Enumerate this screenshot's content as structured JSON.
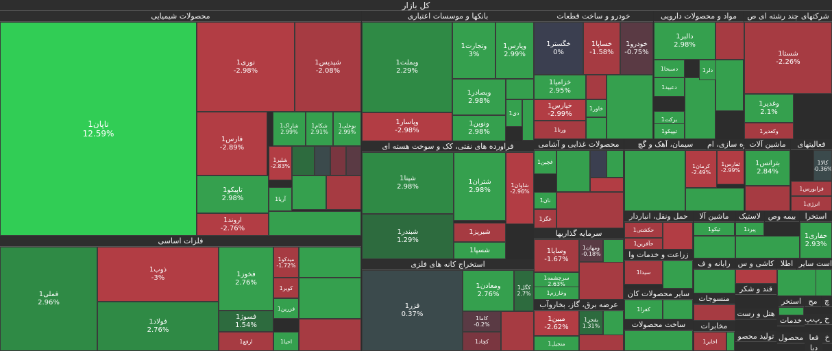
{
  "root_title": "کل بازار",
  "colors": {
    "deep_green": "#2f8a45",
    "green": "#35a04e",
    "bright_green": "#31cd55",
    "dark_green": "#2d6b3e",
    "deep_red": "#b23d44",
    "red": "#a63b42",
    "dark_red": "#7a3640",
    "slate": "#3b4a4c",
    "navy": "#3b3f50",
    "maroon": "#5a3a44"
  },
  "sectors": [
    {
      "id": "chem",
      "title": "محصولات شیمیایی",
      "tiles": [
        {
          "name": "تاپان1",
          "pct": "12.59%",
          "c": "bright_green"
        },
        {
          "name": "نوری1",
          "pct": "-2.98%",
          "c": "deep_red"
        },
        {
          "name": "شپدیس1",
          "pct": "-2.08%",
          "c": "red"
        },
        {
          "name": "فارس1",
          "pct": "-2.89%",
          "c": "deep_red"
        },
        {
          "name": "شاراک1",
          "pct": "2.99%",
          "c": "green"
        },
        {
          "name": "شکام1",
          "pct": "2.91%",
          "c": "green"
        },
        {
          "name": "بوعلی1",
          "pct": "2.99%",
          "c": "green"
        },
        {
          "name": "تاپیکو1",
          "pct": "2.98%",
          "c": "green"
        },
        {
          "name": "شلیر1",
          "pct": "-2.83%",
          "c": "deep_red"
        },
        {
          "name": "آریا1",
          "pct": "",
          "c": "green"
        },
        {
          "name": "اروند1",
          "pct": "-2.76%",
          "c": "deep_red"
        }
      ]
    },
    {
      "id": "banks",
      "title": "بانکها و موسسات اعتباری",
      "tiles": [
        {
          "name": "وبملت1",
          "pct": "2.29%",
          "c": "deep_green"
        },
        {
          "name": "وتجارت1",
          "pct": "3%",
          "c": "green"
        },
        {
          "name": "وپارس1",
          "pct": "2.99%",
          "c": "green"
        },
        {
          "name": "وبصادر1",
          "pct": "2.98%",
          "c": "green"
        },
        {
          "name": "دی1",
          "pct": "",
          "c": "green"
        },
        {
          "name": "ونوین1",
          "pct": "2.98%",
          "c": "green"
        },
        {
          "name": "وپاسار1",
          "pct": "-2.98%",
          "c": "deep_red"
        }
      ]
    },
    {
      "id": "oil",
      "title": "فراورده های نفتی، کک و سوخت هسته ای",
      "tiles": [
        {
          "name": "شپنا1",
          "pct": "2.98%",
          "c": "deep_green"
        },
        {
          "name": "شتران1",
          "pct": "2.98%",
          "c": "green"
        },
        {
          "name": "شاوان1",
          "pct": "-2.96%",
          "c": "deep_red"
        },
        {
          "name": "شبندر1",
          "pct": "1.29%",
          "c": "dark_green"
        },
        {
          "name": "شبریز1",
          "pct": "",
          "c": "red"
        },
        {
          "name": "شسپا1",
          "pct": "",
          "c": "green"
        }
      ]
    },
    {
      "id": "metal_mining",
      "title": "استخراج کانه های فلزی",
      "tiles": [
        {
          "name": "فزر1",
          "pct": "0.37%",
          "c": "slate"
        },
        {
          "name": "ومعادن1",
          "pct": "2.76%",
          "c": "green"
        },
        {
          "name": "کگل1",
          "pct": "2.7%",
          "c": "dark_green"
        },
        {
          "name": "کاما1",
          "pct": "-0.2%",
          "c": "maroon"
        },
        {
          "name": "کچاد1",
          "pct": "",
          "c": "dark_red"
        }
      ]
    },
    {
      "id": "basic_metals",
      "title": "فلزات اساسی",
      "tiles": [
        {
          "name": "فملی1",
          "pct": "2.96%",
          "c": "deep_green"
        },
        {
          "name": "ذوب1",
          "pct": "-3%",
          "c": "deep_red"
        },
        {
          "name": "فولاد1",
          "pct": "2.76%",
          "c": "deep_green"
        },
        {
          "name": "فخوز1",
          "pct": "2.76%",
          "c": "green"
        },
        {
          "name": "میدکو1",
          "pct": "-1.72%",
          "c": "red"
        },
        {
          "name": "کویر1",
          "pct": "",
          "c": "red"
        },
        {
          "name": "فزرین1",
          "pct": "",
          "c": "green"
        },
        {
          "name": "فسوژ1",
          "pct": "1.54%",
          "c": "dark_green"
        },
        {
          "name": "ارفع1",
          "pct": "",
          "c": "red"
        },
        {
          "name": "احیا1",
          "pct": "",
          "c": "green"
        }
      ]
    },
    {
      "id": "auto",
      "title": "خودرو و ساخت قطعات",
      "tiles": [
        {
          "name": "خگستر1",
          "pct": "0%",
          "c": "navy"
        },
        {
          "name": "خساپا1",
          "pct": "-1.58%",
          "c": "red"
        },
        {
          "name": "خودرو1",
          "pct": "-0.75%",
          "c": "maroon"
        },
        {
          "name": "خزامیا1",
          "pct": "2.95%",
          "c": "green"
        },
        {
          "name": "خاور1",
          "pct": "",
          "c": "green"
        },
        {
          "name": "خپارس1",
          "pct": "-2.99%",
          "c": "deep_red"
        },
        {
          "name": "ورنا1",
          "pct": "",
          "c": "red"
        }
      ]
    },
    {
      "id": "pharma",
      "title": "مواد و محصولات دارویی",
      "tiles": [
        {
          "name": "دالبر1",
          "pct": "2.98%",
          "c": "green"
        },
        {
          "name": "دسبحا1",
          "pct": "",
          "c": "green"
        },
        {
          "name": "دلر1",
          "pct": "",
          "c": "green"
        },
        {
          "name": "دعبید1",
          "pct": "",
          "c": "green"
        },
        {
          "name": "برکت1",
          "pct": "",
          "c": "green"
        },
        {
          "name": "تیپیکو1",
          "pct": "",
          "c": "green"
        }
      ]
    },
    {
      "id": "multi",
      "title": "شرکتهای چند رشته ای ص",
      "tiles": [
        {
          "name": "شستا1",
          "pct": "-2.26%",
          "c": "red"
        },
        {
          "name": "وغدیر1",
          "pct": "2.1%",
          "c": "green"
        },
        {
          "name": "وکغدیر1",
          "pct": "",
          "c": "red"
        }
      ]
    },
    {
      "id": "food",
      "title": "محصولات غذایی و آشامی",
      "tiles": [
        {
          "name": "غچین1",
          "pct": "",
          "c": "green"
        },
        {
          "name": "نان1",
          "pct": "",
          "c": "green"
        },
        {
          "name": "غگز1",
          "pct": "",
          "c": "red"
        }
      ]
    },
    {
      "id": "cement",
      "title": "سیمان، آهک و گچ",
      "tiles": []
    },
    {
      "id": "mass",
      "title": "انبوه سازی، ام",
      "tiles": [
        {
          "name": "کرمان1",
          "pct": "-2.49%",
          "c": "deep_red"
        },
        {
          "name": "ثفارس1",
          "pct": "-2.99%",
          "c": "deep_red"
        }
      ]
    },
    {
      "id": "machinery",
      "title": "ماشین آلات",
      "tiles": [
        {
          "name": "بترانس1",
          "pct": "2.84%",
          "c": "green"
        }
      ]
    },
    {
      "id": "misc",
      "title": "فعالیتهای",
      "tiles": [
        {
          "name": "کالا1",
          "pct": "-0.36%",
          "c": "slate"
        },
        {
          "name": "فرابورس1",
          "pct": "",
          "c": "red"
        },
        {
          "name": "انرژی1",
          "pct": "",
          "c": "red"
        }
      ]
    },
    {
      "id": "invest",
      "title": "سرمایه گذاریها",
      "tiles": [
        {
          "name": "وسایا1",
          "pct": "-1.67%",
          "c": "red"
        },
        {
          "name": "ومهان1",
          "pct": "-0.18%",
          "c": "maroon"
        },
        {
          "name": "سرچشمه1",
          "pct": "2.63%",
          "c": "green"
        },
        {
          "name": "وخارزم1",
          "pct": "",
          "c": "green"
        }
      ]
    },
    {
      "id": "transport",
      "title": "حمل ونقل، انباردار",
      "tiles": [
        {
          "name": "حکشتی1",
          "pct": "",
          "c": "red"
        },
        {
          "name": "حآفرین1",
          "pct": "",
          "c": "red"
        }
      ]
    },
    {
      "id": "auto_mach",
      "title": "ماشین آلا",
      "tiles": []
    },
    {
      "id": "tires",
      "title": "لاستیک",
      "tiles": [
        {
          "name": "پیرد1",
          "pct": "",
          "c": "green"
        },
        {
          "name": "تیکو1",
          "pct": "",
          "c": "green"
        }
      ]
    },
    {
      "id": "insurance",
      "title": "بیمه وص",
      "tiles": []
    },
    {
      "id": "extract",
      "title": "استخرا",
      "tiles": [
        {
          "name": "حفاری1",
          "pct": "2.93%",
          "c": "green"
        }
      ]
    },
    {
      "id": "agri",
      "title": "زراعت و خدمات وا",
      "tiles": [
        {
          "name": "سیدا1",
          "pct": "",
          "c": "red"
        }
      ]
    },
    {
      "id": "radio",
      "title": "رایانه و ف",
      "tiles": []
    },
    {
      "id": "kashi",
      "title": "کاشی و س",
      "tiles": []
    },
    {
      "id": "atla",
      "title": "اطلا",
      "tiles": []
    },
    {
      "id": "sayer",
      "title": "سایر",
      "tiles": []
    },
    {
      "id": "ast",
      "title": "است",
      "tiles": []
    },
    {
      "id": "other_prod",
      "title": "سایر محصولات کان",
      "tiles": [
        {
          "name": "کفرا1",
          "pct": "",
          "c": "green"
        }
      ]
    },
    {
      "id": "sugar",
      "title": "قند و شکر",
      "tiles": []
    },
    {
      "id": "textiles",
      "title": "منسوجات",
      "tiles": []
    },
    {
      "id": "hotel",
      "title": "هتل و رست",
      "tiles": []
    },
    {
      "id": "services",
      "title": "خدمات",
      "tiles": []
    },
    {
      "id": "energy",
      "title": "عرضه برق، گاز، بخاروآب",
      "tiles": [
        {
          "name": "مبین1",
          "pct": "-2.62%",
          "c": "deep_red"
        },
        {
          "name": "بفجر1",
          "pct": "1.31%",
          "c": "dark_green"
        },
        {
          "name": "منجیل1",
          "pct": "",
          "c": "green"
        }
      ]
    },
    {
      "id": "other_mfg",
      "title": "ساخت محصولات",
      "tiles": []
    },
    {
      "id": "comm",
      "title": "مخابرات",
      "tiles": [
        {
          "name": "اخابر1",
          "pct": "",
          "c": "red"
        }
      ]
    },
    {
      "id": "product_mfg",
      "title": "تولید محصو",
      "tiles": []
    },
    {
      "id": "mahsoul",
      "title": "محصول",
      "tiles": []
    },
    {
      "id": "fa",
      "title": "فعا",
      "tiles": []
    },
    {
      "id": "ch",
      "title": "چ",
      "tiles": []
    },
    {
      "id": "ch2",
      "title": "خ",
      "tiles": []
    },
    {
      "id": "mah",
      "title": "مح",
      "tiles": []
    },
    {
      "id": "rp",
      "title": "رپ",
      "tiles": []
    },
    {
      "id": "sp",
      "title": "سپ",
      "tiles": []
    },
    {
      "id": "kh2",
      "title": "خ",
      "tiles": []
    },
    {
      "id": "da",
      "title": "دبا",
      "tiles": []
    },
    {
      "id": "ee",
      "title": "استخر",
      "tiles": []
    }
  ]
}
